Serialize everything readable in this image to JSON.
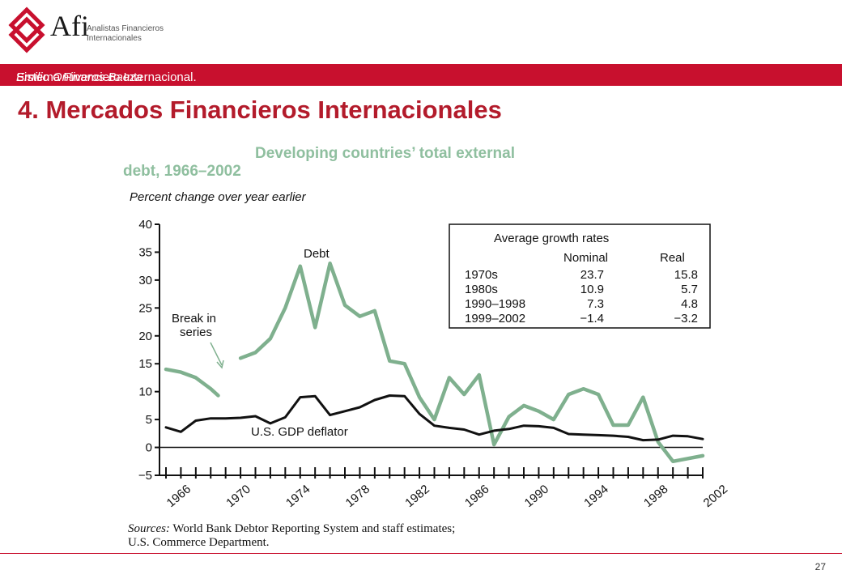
{
  "header": {
    "brand": "Afi",
    "brand_sub_1": "Analistas Financieros",
    "brand_sub_2": "Internacionales",
    "banner_course": "Sistema Financiero Internacional.",
    "banner_author": "Emilio Ontiveros Baeza"
  },
  "page_title": "4. Mercados Financieros Internacionales",
  "page_number": "27",
  "colors": {
    "accent": "#c8102e",
    "title": "#b31b2b",
    "debt_series": "#7fb08e",
    "deflator_series": "#111111"
  },
  "chart_data": {
    "type": "line",
    "title_line1": "Developing countries’ total external",
    "title_line2": "debt, 1966–2002",
    "subtitle": "Percent change over year earlier",
    "ylim": [
      -5,
      40
    ],
    "xlim": [
      1966,
      2002
    ],
    "yticks": [
      "40",
      "35",
      "30",
      "25",
      "20",
      "15",
      "10",
      "5",
      "0",
      "−5"
    ],
    "xticks": [
      "1966",
      "1970",
      "1974",
      "1978",
      "1982",
      "1986",
      "1990",
      "1994",
      "1998",
      "2002"
    ],
    "series": [
      {
        "name": "Debt",
        "segments": [
          [
            [
              1966,
              14
            ],
            [
              1967,
              13.5
            ],
            [
              1968,
              12.5
            ],
            [
              1969,
              10.5
            ],
            [
              1969.5,
              9.3
            ]
          ],
          [
            [
              1971,
              16
            ],
            [
              1972,
              17
            ],
            [
              1973,
              19.5
            ],
            [
              1974,
              25
            ],
            [
              1975,
              32.5
            ],
            [
              1976,
              21.5
            ],
            [
              1977,
              33
            ],
            [
              1978,
              25.5
            ],
            [
              1979,
              23.5
            ],
            [
              1980,
              24.5
            ],
            [
              1981,
              15.5
            ],
            [
              1982,
              15
            ],
            [
              1983,
              9
            ],
            [
              1984,
              5
            ],
            [
              1985,
              12.5
            ],
            [
              1986,
              9.5
            ],
            [
              1987,
              13
            ],
            [
              1988,
              0.5
            ],
            [
              1989,
              5.5
            ],
            [
              1990,
              7.5
            ],
            [
              1991,
              6.5
            ],
            [
              1992,
              5
            ],
            [
              1993,
              9.5
            ],
            [
              1994,
              10.5
            ],
            [
              1995,
              9.5
            ],
            [
              1996,
              4
            ],
            [
              1997,
              4
            ],
            [
              1998,
              9
            ],
            [
              1999,
              1
            ],
            [
              2000,
              -2.5
            ],
            [
              2001,
              -2
            ],
            [
              2002,
              -1.5
            ]
          ]
        ]
      },
      {
        "name": "U.S. GDP deflator",
        "segments": [
          [
            [
              1966,
              3.6
            ],
            [
              1967,
              2.8
            ],
            [
              1968,
              4.8
            ],
            [
              1969,
              5.2
            ],
            [
              1970,
              5.2
            ],
            [
              1971,
              5.3
            ],
            [
              1972,
              5.6
            ],
            [
              1973,
              4.3
            ],
            [
              1974,
              5.4
            ],
            [
              1975,
              9
            ],
            [
              1976,
              9.2
            ],
            [
              1977,
              5.8
            ],
            [
              1978,
              6.5
            ],
            [
              1979,
              7.2
            ],
            [
              1980,
              8.5
            ],
            [
              1981,
              9.3
            ],
            [
              1982,
              9.2
            ],
            [
              1983,
              6
            ],
            [
              1984,
              3.9
            ],
            [
              1985,
              3.5
            ],
            [
              1986,
              3.2
            ],
            [
              1987,
              2.3
            ],
            [
              1988,
              3
            ],
            [
              1989,
              3.3
            ],
            [
              1990,
              3.9
            ],
            [
              1991,
              3.8
            ],
            [
              1992,
              3.5
            ],
            [
              1993,
              2.4
            ],
            [
              1994,
              2.3
            ],
            [
              1995,
              2.2
            ],
            [
              1996,
              2.1
            ],
            [
              1997,
              1.9
            ],
            [
              1998,
              1.3
            ],
            [
              1999,
              1.4
            ],
            [
              2000,
              2.1
            ],
            [
              2001,
              2
            ],
            [
              2002,
              1.5
            ]
          ]
        ]
      }
    ],
    "annotations": {
      "debt": "Debt",
      "break_line1": "Break in",
      "break_line2": "series",
      "deflator": "U.S. GDP deflator"
    },
    "inset_table": {
      "title": "Average growth rates",
      "headers": [
        "",
        "Nominal",
        "Real"
      ],
      "rows": [
        [
          "1970s",
          "23.7",
          "15.8"
        ],
        [
          "1980s",
          "10.9",
          "5.7"
        ],
        [
          "1990–1998",
          "7.3",
          "4.8"
        ],
        [
          "1999–2002",
          "−1.4",
          "−3.2"
        ]
      ]
    },
    "sources_line1": "World Bank Debtor Reporting System and staff estimates;",
    "sources_line2": "U.S. Commerce Department.",
    "sources_label": "Sources:"
  }
}
